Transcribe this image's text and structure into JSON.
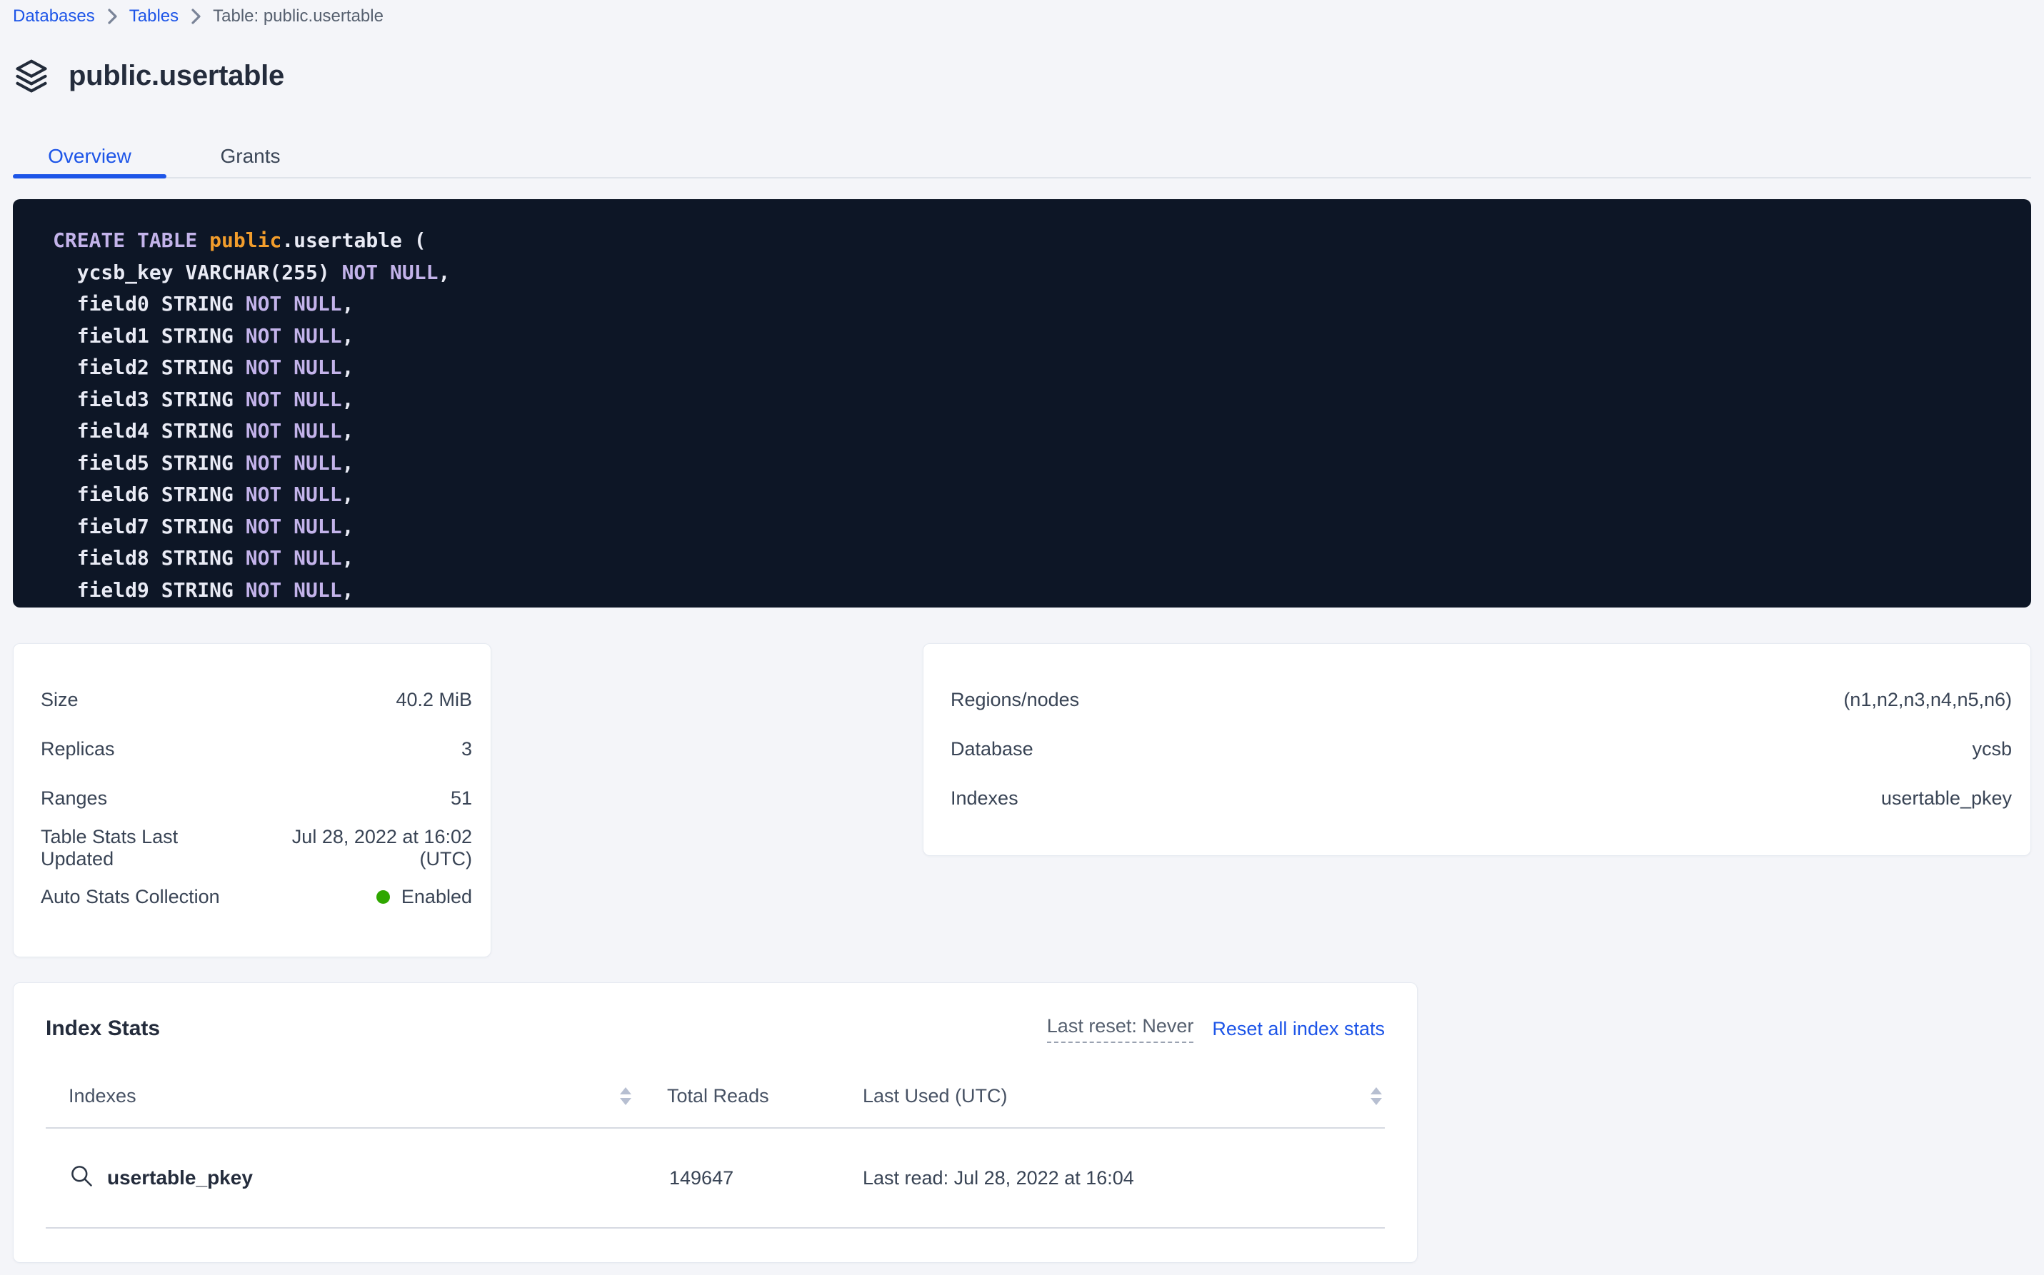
{
  "breadcrumb": {
    "items": [
      {
        "label": "Databases",
        "type": "link"
      },
      {
        "label": "Tables",
        "type": "link"
      },
      {
        "label": "Table: public.usertable",
        "type": "current"
      }
    ]
  },
  "header": {
    "title": "public.usertable",
    "icon": "layers-stack-icon"
  },
  "tabs": [
    {
      "label": "Overview",
      "active": true
    },
    {
      "label": "Grants",
      "active": false
    }
  ],
  "sql": {
    "lines": [
      [
        [
          "k",
          "CREATE TABLE "
        ],
        [
          "fn",
          "public"
        ],
        [
          "p",
          ".usertable ("
        ]
      ],
      [
        [
          "p",
          "  ycsb_key VARCHAR(255) "
        ],
        [
          "k",
          "NOT NULL"
        ],
        [
          "p",
          ","
        ]
      ],
      [
        [
          "p",
          "  field0 STRING "
        ],
        [
          "k",
          "NOT NULL"
        ],
        [
          "p",
          ","
        ]
      ],
      [
        [
          "p",
          "  field1 STRING "
        ],
        [
          "k",
          "NOT NULL"
        ],
        [
          "p",
          ","
        ]
      ],
      [
        [
          "p",
          "  field2 STRING "
        ],
        [
          "k",
          "NOT NULL"
        ],
        [
          "p",
          ","
        ]
      ],
      [
        [
          "p",
          "  field3 STRING "
        ],
        [
          "k",
          "NOT NULL"
        ],
        [
          "p",
          ","
        ]
      ],
      [
        [
          "p",
          "  field4 STRING "
        ],
        [
          "k",
          "NOT NULL"
        ],
        [
          "p",
          ","
        ]
      ],
      [
        [
          "p",
          "  field5 STRING "
        ],
        [
          "k",
          "NOT NULL"
        ],
        [
          "p",
          ","
        ]
      ],
      [
        [
          "p",
          "  field6 STRING "
        ],
        [
          "k",
          "NOT NULL"
        ],
        [
          "p",
          ","
        ]
      ],
      [
        [
          "p",
          "  field7 STRING "
        ],
        [
          "k",
          "NOT NULL"
        ],
        [
          "p",
          ","
        ]
      ],
      [
        [
          "p",
          "  field8 STRING "
        ],
        [
          "k",
          "NOT NULL"
        ],
        [
          "p",
          ","
        ]
      ],
      [
        [
          "p",
          "  field9 STRING "
        ],
        [
          "k",
          "NOT NULL"
        ],
        [
          "p",
          ","
        ]
      ]
    ]
  },
  "summary_left": {
    "rows": [
      {
        "label": "Size",
        "value": "40.2 MiB"
      },
      {
        "label": "Replicas",
        "value": "3"
      },
      {
        "label": "Ranges",
        "value": "51"
      },
      {
        "label": "Table Stats Last Updated",
        "value": "Jul 28, 2022 at 16:02 (UTC)"
      },
      {
        "label": "Auto Stats Collection",
        "value": "Enabled",
        "status": "enabled"
      }
    ]
  },
  "summary_right": {
    "rows": [
      {
        "label": "Regions/nodes",
        "value": "(n1,n2,n3,n4,n5,n6)"
      },
      {
        "label": "Database",
        "value": "ycsb"
      },
      {
        "label": "Indexes",
        "value": "usertable_pkey"
      }
    ]
  },
  "index_stats": {
    "title": "Index Stats",
    "last_reset_label": "Last reset: Never",
    "reset_link_label": "Reset all index stats",
    "columns": [
      "Indexes",
      "Total Reads",
      "Last Used (UTC)"
    ],
    "rows": [
      {
        "index_name": "usertable_pkey",
        "total_reads": "149647",
        "last_used": "Last read: Jul 28, 2022 at 16:04"
      }
    ]
  },
  "colors": {
    "accent_blue": "#1d55e8",
    "status_green": "#2fa700",
    "code_background": "#0d1626",
    "code_keyword": "#c3b3ea",
    "code_schema_name": "#f29d2c",
    "code_plain": "#e9ebf5"
  }
}
